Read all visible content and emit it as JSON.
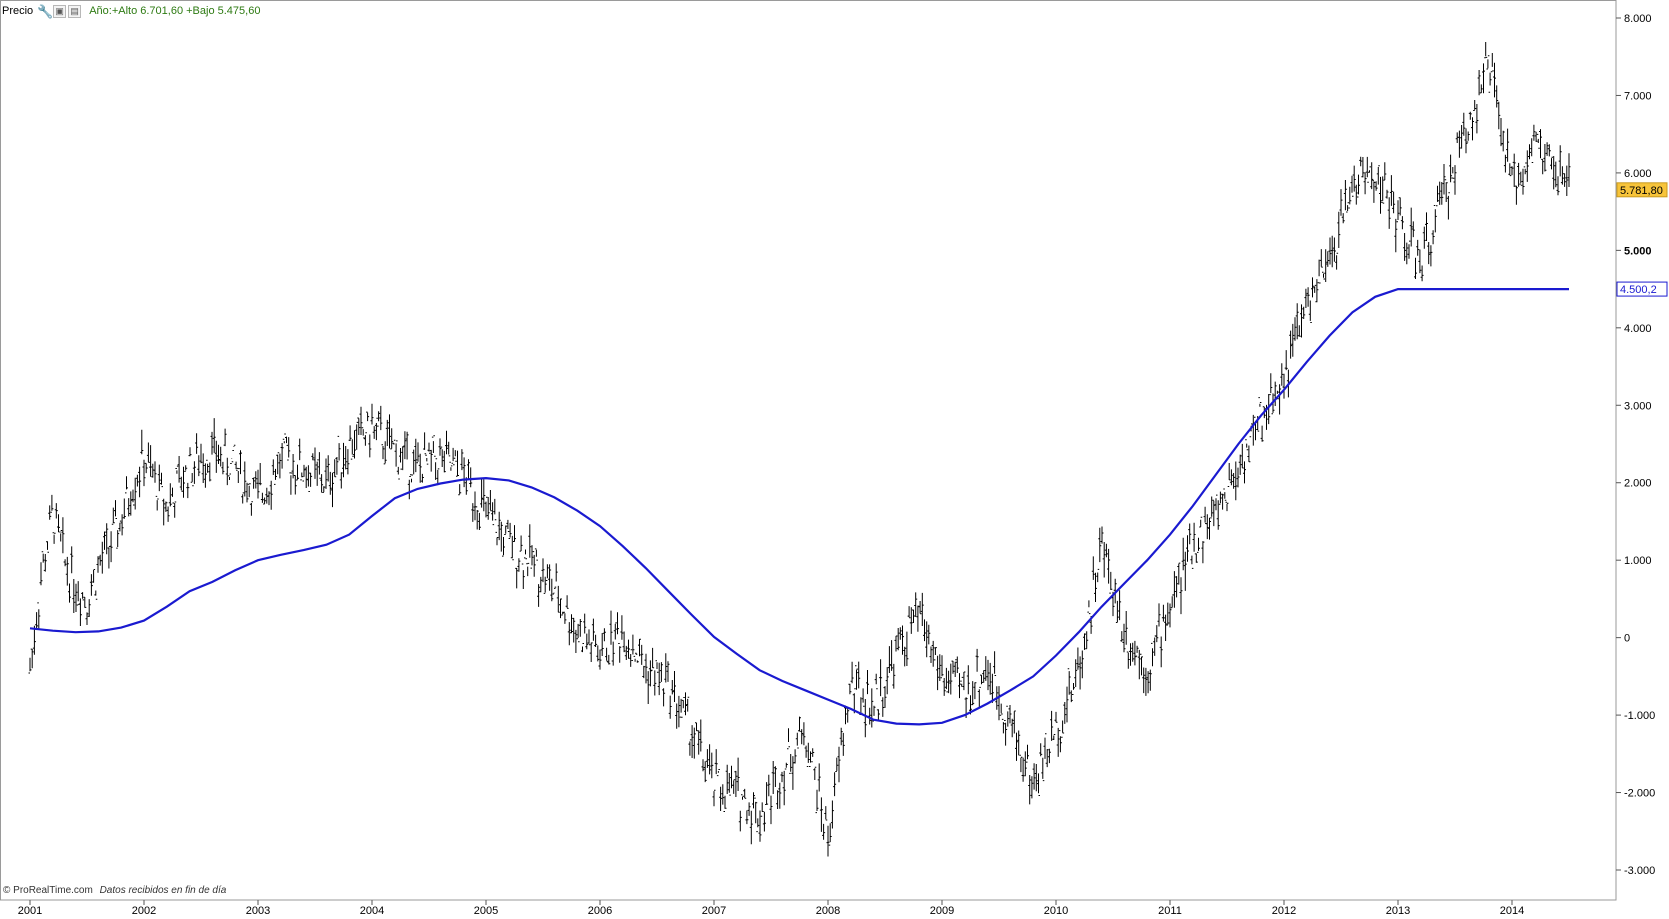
{
  "header": {
    "title": "Precio",
    "info": "Año:+Alto 6.701,60 +Bajo 5.475,60"
  },
  "footer": {
    "brand": "© ProRealTime.com",
    "note": "Datos recibidos en fin de día"
  },
  "colors": {
    "price": "#000000",
    "ma": "#1a1ad0",
    "price_badge": "#f7c43a",
    "ma_badge_border": "#1a1ad0",
    "axis": "#9a9a9a"
  },
  "chart_data": {
    "type": "line",
    "ylim": [
      -3300,
      8250
    ],
    "xlim": [
      2001.0,
      2015.0
    ],
    "y_ticks": [
      {
        "value": 8000,
        "label": "8.000"
      },
      {
        "value": 7000,
        "label": "7.000"
      },
      {
        "value": 6000,
        "label": "6.000"
      },
      {
        "value": 5000,
        "label": "5.000",
        "bold": true
      },
      {
        "value": 4000,
        "label": "4.000"
      },
      {
        "value": 3000,
        "label": "3.000"
      },
      {
        "value": 2000,
        "label": "2.000"
      },
      {
        "value": 1000,
        "label": "1.000"
      },
      {
        "value": 0,
        "label": "0"
      },
      {
        "value": -1000,
        "label": "-1.000"
      },
      {
        "value": -2000,
        "label": "-2.000"
      },
      {
        "value": -3000,
        "label": "-3.000"
      }
    ],
    "x_ticks": [
      "2001",
      "2002",
      "2003",
      "2004",
      "2005",
      "2006",
      "2007",
      "2008",
      "2009",
      "2010",
      "2011",
      "2012",
      "2013",
      "2014"
    ],
    "series": [
      {
        "kind": "price",
        "x": [
          2001.0,
          2001.1,
          2001.2,
          2001.3,
          2001.4,
          2001.5,
          2001.6,
          2001.7,
          2001.8,
          2001.9,
          2002.0,
          2002.2,
          2002.4,
          2002.6,
          2002.8,
          2003.0,
          2003.2,
          2003.4,
          2003.6,
          2003.8,
          2004.0,
          2004.2,
          2004.4,
          2004.6,
          2004.8,
          2005.0,
          2005.2,
          2005.4,
          2005.6,
          2005.8,
          2006.0,
          2006.2,
          2006.4,
          2006.6,
          2006.8,
          2007.0,
          2007.2,
          2007.4,
          2007.6,
          2007.8,
          2008.0,
          2008.2,
          2008.4,
          2008.6,
          2008.8,
          2009.0,
          2009.2,
          2009.4,
          2009.6,
          2009.8,
          2010.0,
          2010.2,
          2010.4,
          2010.6,
          2010.8,
          2011.0,
          2011.2,
          2011.4,
          2011.6,
          2011.8,
          2012.0,
          2012.2,
          2012.4,
          2012.6,
          2012.8,
          2013.0,
          2013.2,
          2013.4,
          2013.6,
          2013.8,
          2014.0,
          2014.2,
          2014.4,
          2014.5
        ],
        "values": [
          -400,
          800,
          1600,
          1000,
          700,
          500,
          900,
          1200,
          1500,
          2000,
          2300,
          1700,
          2200,
          2400,
          2200,
          1800,
          2300,
          2200,
          2000,
          2500,
          2700,
          2400,
          2200,
          2300,
          2100,
          1600,
          1200,
          1000,
          600,
          100,
          -200,
          100,
          -400,
          -600,
          -1200,
          -1900,
          -2000,
          -2300,
          -1700,
          -1200,
          -2600,
          -600,
          -900,
          -200,
          300,
          -500,
          -700,
          -400,
          -1100,
          -1900,
          -1200,
          -400,
          1200,
          100,
          -400,
          400,
          1200,
          1600,
          2200,
          2800,
          3400,
          4300,
          4800,
          5900,
          6000,
          5400,
          4800,
          5700,
          6600,
          7400,
          5800,
          6400,
          6000,
          5800
        ]
      },
      {
        "kind": "ma",
        "x": [
          2001.0,
          2001.2,
          2001.4,
          2001.6,
          2001.8,
          2002.0,
          2002.2,
          2002.4,
          2002.6,
          2002.8,
          2003.0,
          2003.2,
          2003.4,
          2003.6,
          2003.8,
          2004.0,
          2004.2,
          2004.4,
          2004.6,
          2004.8,
          2005.0,
          2005.2,
          2005.4,
          2005.6,
          2005.8,
          2006.0,
          2006.2,
          2006.4,
          2006.6,
          2006.8,
          2007.0,
          2007.2,
          2007.4,
          2007.6,
          2007.8,
          2008.0,
          2008.2,
          2008.4,
          2008.6,
          2008.8,
          2009.0,
          2009.2,
          2009.4,
          2009.6,
          2009.8,
          2010.0,
          2010.2,
          2010.4,
          2010.6,
          2010.8,
          2011.0,
          2011.2,
          2011.4,
          2011.6,
          2011.8,
          2012.0,
          2012.2,
          2012.4,
          2012.6,
          2012.8,
          2013.0,
          2013.2,
          2013.4,
          2013.6,
          2013.8,
          2014.0,
          2014.2,
          2014.4,
          2014.5
        ],
        "values": [
          120,
          90,
          70,
          80,
          130,
          220,
          400,
          600,
          720,
          870,
          1000,
          1070,
          1130,
          1200,
          1330,
          1570,
          1800,
          1920,
          1990,
          2040,
          2060,
          2030,
          1940,
          1810,
          1640,
          1440,
          1180,
          900,
          600,
          300,
          10,
          -210,
          -420,
          -560,
          -680,
          -800,
          -920,
          -1060,
          -1110,
          -1120,
          -1100,
          -1000,
          -850,
          -680,
          -500,
          -230,
          70,
          400,
          700,
          1000,
          1330,
          1700,
          2100,
          2500,
          2870,
          3200,
          3560,
          3900,
          4200,
          4400,
          4500,
          4500,
          4500,
          4500,
          4500,
          4500,
          4500,
          4500,
          4500
        ]
      }
    ],
    "badges": [
      {
        "for": "price",
        "value": 5781.8,
        "label": "5.781,80"
      },
      {
        "for": "ma",
        "value": 4500.2,
        "label": "4.500,2"
      }
    ],
    "grid": false
  }
}
